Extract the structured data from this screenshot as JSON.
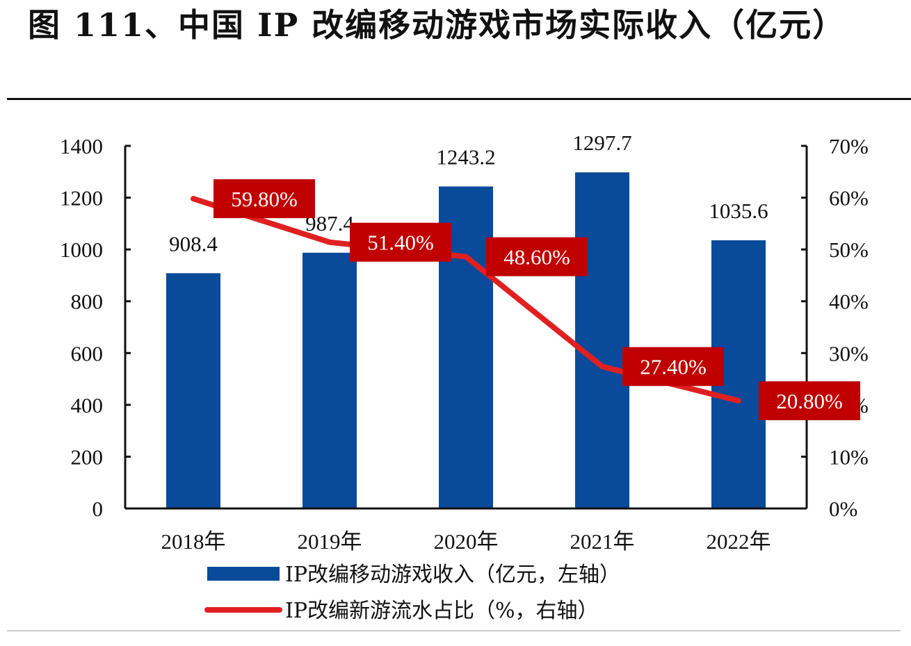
{
  "title": "图 111、中国 IP 改编移动游戏市场实际收入（亿元）",
  "chart_data": {
    "type": "bar+line",
    "categories": [
      "2018年",
      "2019年",
      "2020年",
      "2021年",
      "2022年"
    ],
    "series": [
      {
        "name": "IP改编移动游戏收入（亿元，左轴）",
        "type": "bar",
        "axis": "left",
        "color": "#0a4a9a",
        "values": [
          908.4,
          987.4,
          1243.2,
          1297.7,
          1035.6
        ],
        "labels": [
          "908.4",
          "987.4",
          "1243.2",
          "1297.7",
          "1035.6"
        ]
      },
      {
        "name": "IP改编新游流水占比（%，右轴）",
        "type": "line",
        "axis": "right",
        "color": "#e02020",
        "values": [
          59.8,
          51.4,
          48.6,
          27.4,
          20.8
        ],
        "labels": [
          "59.80%",
          "51.40%",
          "48.60%",
          "27.40%",
          "20.80%"
        ]
      }
    ],
    "left_axis": {
      "range": [
        0,
        1400
      ],
      "ticks": [
        "0",
        "200",
        "400",
        "600",
        "800",
        "1000",
        "1200",
        "1400"
      ]
    },
    "right_axis": {
      "range": [
        0,
        70
      ],
      "ticks": [
        "0%",
        "10%",
        "20%",
        "30%",
        "40%",
        "50%",
        "60%",
        "70%"
      ]
    },
    "label_box_color": "#c00000",
    "grid": false,
    "legend_position": "bottom"
  }
}
